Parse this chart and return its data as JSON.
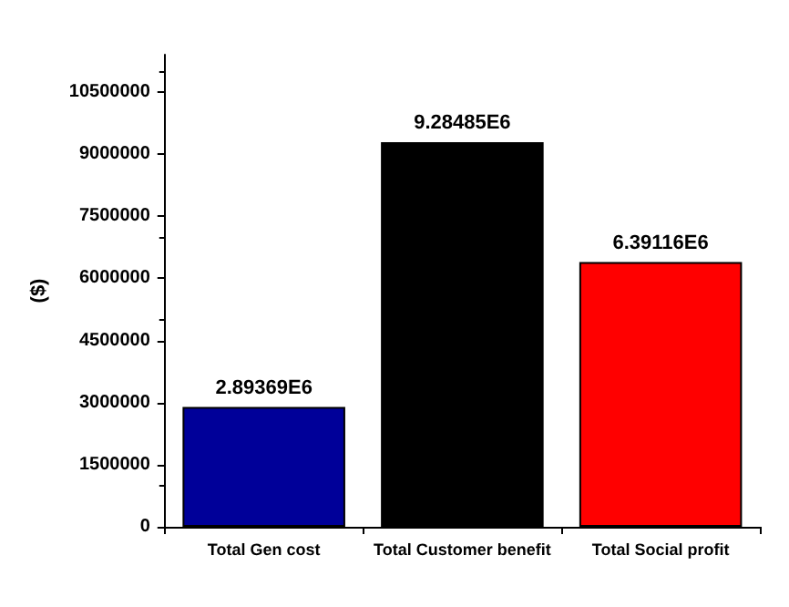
{
  "chart_data": {
    "type": "bar",
    "ylabel": "($)",
    "categories": [
      "Total Gen cost",
      "Total Customer benefit",
      "Total Social profit"
    ],
    "values": [
      2893690,
      9284850,
      6391160
    ],
    "value_labels": [
      "2.89369E6",
      "9.28485E6",
      "6.39116E6"
    ],
    "colors": [
      "#000099",
      "#000000",
      "#ff0000"
    ],
    "ylim": [
      0,
      11400000
    ],
    "yticks": [
      0,
      1500000,
      3000000,
      4500000,
      6000000,
      7500000,
      9000000,
      10500000
    ],
    "grid": false
  }
}
